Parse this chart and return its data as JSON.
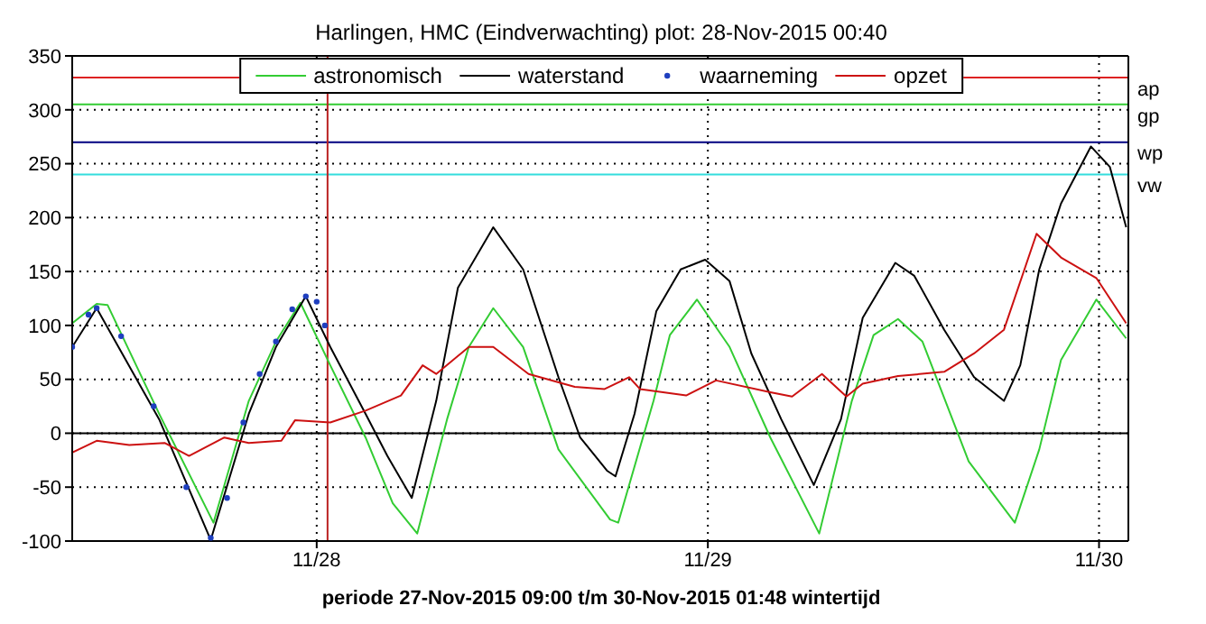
{
  "chart_data": {
    "type": "line",
    "title": "Harlingen, HMC (Eindverwachting) plot: 28-Nov-2015 00:40",
    "xlabel": "periode 27-Nov-2015 09:00 t/m 30-Nov-2015 01:48 wintertijd",
    "xlim": [
      "2015-11-27T09:00",
      "2015-11-30T01:48"
    ],
    "xticks": [
      {
        "value": "2015-11-28",
        "label": "11/28"
      },
      {
        "value": "2015-11-29",
        "label": "11/29"
      },
      {
        "value": "2015-11-30",
        "label": "11/30"
      }
    ],
    "ylim": [
      -100,
      350
    ],
    "yticks": [
      -100,
      -50,
      0,
      50,
      100,
      150,
      200,
      250,
      300,
      350
    ],
    "grid": true,
    "legend": "top",
    "series": [
      {
        "name": "astronomisch",
        "color": "#33cc33",
        "x": [
          "2015-11-27T09:00",
          "2015-11-27T10:30",
          "2015-11-27T11:10",
          "2015-11-27T14:20",
          "2015-11-27T17:40",
          "2015-11-27T19:50",
          "2015-11-27T21:30",
          "2015-11-27T23:00",
          "2015-11-28T00:50",
          "2015-11-28T03:00",
          "2015-11-28T04:40",
          "2015-11-28T06:10",
          "2015-11-28T08:00",
          "2015-11-28T09:20",
          "2015-11-28T10:50",
          "2015-11-28T12:40",
          "2015-11-28T14:50",
          "2015-11-28T18:00",
          "2015-11-28T18:30",
          "2015-11-28T20:40",
          "2015-11-28T21:40",
          "2015-11-28T23:20",
          "2015-11-29T01:20",
          "2015-11-29T03:50",
          "2015-11-29T06:50",
          "2015-11-29T08:50",
          "2015-11-29T10:10",
          "2015-11-29T11:40",
          "2015-11-29T13:10",
          "2015-11-29T16:00",
          "2015-11-29T18:50",
          "2015-11-29T20:20",
          "2015-11-29T21:40",
          "2015-11-29T23:50",
          "2015-11-30T01:40"
        ],
        "values": [
          102,
          120,
          119,
          18,
          -83,
          30,
          85,
          121,
          63,
          -4,
          -65,
          -93,
          13,
          80,
          116,
          80,
          -15,
          -80,
          -83,
          30,
          91,
          124,
          80,
          -4,
          -93,
          30,
          91,
          106,
          85,
          -26,
          -83,
          -15,
          68,
          124,
          88
        ]
      },
      {
        "name": "waterstand",
        "color": "#000000",
        "x": [
          "2015-11-27T09:00",
          "2015-11-27T10:30",
          "2015-11-27T14:20",
          "2015-11-27T17:30",
          "2015-11-27T19:50",
          "2015-11-27T21:30",
          "2015-11-27T23:20",
          "2015-11-28T00:50",
          "2015-11-28T03:00",
          "2015-11-28T04:20",
          "2015-11-28T05:50",
          "2015-11-28T07:20",
          "2015-11-28T08:40",
          "2015-11-28T10:50",
          "2015-11-28T12:40",
          "2015-11-28T14:50",
          "2015-11-28T16:10",
          "2015-11-28T17:50",
          "2015-11-28T18:20",
          "2015-11-28T19:30",
          "2015-11-28T20:50",
          "2015-11-28T22:20",
          "2015-11-28T23:50",
          "2015-11-29T01:20",
          "2015-11-29T02:40",
          "2015-11-29T04:30",
          "2015-11-29T06:30",
          "2015-11-29T08:10",
          "2015-11-29T09:30",
          "2015-11-29T11:30",
          "2015-11-29T12:40",
          "2015-11-29T14:30",
          "2015-11-29T16:20",
          "2015-11-29T18:10",
          "2015-11-29T19:10",
          "2015-11-29T20:20",
          "2015-11-29T21:40",
          "2015-11-29T23:30",
          "2015-11-30T00:40",
          "2015-11-30T01:40"
        ],
        "values": [
          80,
          116,
          13,
          -99,
          18,
          80,
          127,
          80,
          18,
          -21,
          -60,
          30,
          135,
          191,
          152,
          52,
          -4,
          -35,
          -40,
          18,
          113,
          152,
          161,
          141,
          74,
          13,
          -48,
          13,
          107,
          158,
          146,
          96,
          52,
          30,
          63,
          152,
          213,
          266,
          247,
          191
        ]
      },
      {
        "name": "waarneming",
        "type": "scatter",
        "marker": "circle",
        "color": "#1f3fbf",
        "x": [
          "2015-11-27T09:00",
          "2015-11-27T10:00",
          "2015-11-27T10:30",
          "2015-11-27T12:00",
          "2015-11-27T14:00",
          "2015-11-27T16:00",
          "2015-11-27T17:30",
          "2015-11-27T18:30",
          "2015-11-27T19:30",
          "2015-11-27T20:30",
          "2015-11-27T21:30",
          "2015-11-27T22:30",
          "2015-11-27T23:20",
          "2015-11-28T00:00",
          "2015-11-28T00:30"
        ],
        "values": [
          80,
          110,
          116,
          90,
          25,
          -50,
          -97,
          -60,
          10,
          55,
          85,
          115,
          127,
          122,
          100
        ]
      },
      {
        "name": "opzet",
        "color": "#cc1111",
        "x": [
          "2015-11-27T09:00",
          "2015-11-27T10:30",
          "2015-11-27T12:30",
          "2015-11-27T14:40",
          "2015-11-27T16:10",
          "2015-11-27T18:20",
          "2015-11-27T19:50",
          "2015-11-27T21:50",
          "2015-11-27T22:40",
          "2015-11-28T00:50",
          "2015-11-28T03:00",
          "2015-11-28T05:10",
          "2015-11-28T06:30",
          "2015-11-28T07:20",
          "2015-11-28T09:20",
          "2015-11-28T10:50",
          "2015-11-28T13:00",
          "2015-11-28T15:50",
          "2015-11-28T17:40",
          "2015-11-28T19:10",
          "2015-11-28T19:50",
          "2015-11-28T22:40",
          "2015-11-29T00:30",
          "2015-11-29T03:50",
          "2015-11-29T05:10",
          "2015-11-29T07:00",
          "2015-11-29T08:30",
          "2015-11-29T09:30",
          "2015-11-29T11:40",
          "2015-11-29T14:30",
          "2015-11-29T16:20",
          "2015-11-29T18:10",
          "2015-11-29T20:10",
          "2015-11-29T21:40",
          "2015-11-29T23:50",
          "2015-11-30T01:40"
        ],
        "values": [
          -18,
          -7,
          -11,
          -9,
          -21,
          -4,
          -9,
          -7,
          12,
          10,
          21,
          35,
          63,
          55,
          80,
          80,
          55,
          43,
          41,
          52,
          41,
          35,
          49,
          38,
          34,
          55,
          34,
          46,
          53,
          57,
          74,
          96,
          185,
          163,
          144,
          102
        ]
      }
    ],
    "ref_lines": [
      {
        "axis": "y",
        "value": 330,
        "label": "ap",
        "color": "#dd2222"
      },
      {
        "axis": "y",
        "value": 305,
        "label": "gp",
        "color": "#33cc33"
      },
      {
        "axis": "y",
        "value": 270,
        "label": "wp",
        "color": "#000080"
      },
      {
        "axis": "y",
        "value": 240,
        "label": "vw",
        "color": "#33dddd"
      },
      {
        "axis": "y",
        "value": 0,
        "color": "#000000"
      },
      {
        "axis": "x",
        "value": "2015-11-28T00:40",
        "color": "#bb2222"
      }
    ]
  }
}
